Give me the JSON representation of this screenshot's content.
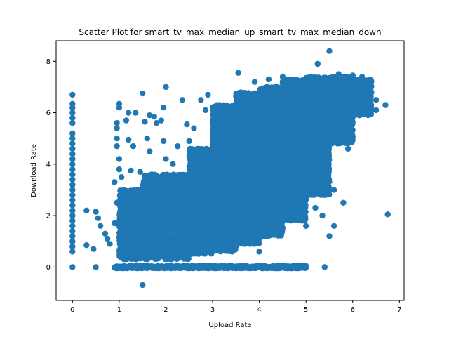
{
  "chart_data": {
    "type": "scatter",
    "title": "Scatter Plot for smart_tv_max_median_up_smart_tv_max_median_down",
    "xlabel": "Upload Rate",
    "ylabel": "Download Rate",
    "xlim": [
      -0.35,
      7.1
    ],
    "ylim": [
      -1.3,
      8.8
    ],
    "xticks": [
      0,
      1,
      2,
      3,
      4,
      5,
      6,
      7
    ],
    "yticks": [
      0,
      2,
      4,
      6,
      8
    ],
    "grid": false,
    "marker_color": "#1f77b4",
    "points": [
      [
        0,
        6.7
      ],
      [
        0,
        6.35
      ],
      [
        0,
        6.2
      ],
      [
        0,
        6.0
      ],
      [
        0,
        5.8
      ],
      [
        0,
        5.6
      ],
      [
        0,
        5.2
      ],
      [
        0,
        5.0
      ],
      [
        0,
        4.8
      ],
      [
        0,
        4.6
      ],
      [
        0,
        4.4
      ],
      [
        0,
        4.2
      ],
      [
        0,
        4.0
      ],
      [
        0,
        3.8
      ],
      [
        0,
        3.6
      ],
      [
        0,
        3.4
      ],
      [
        0,
        3.2
      ],
      [
        0,
        3.0
      ],
      [
        0,
        2.8
      ],
      [
        0,
        2.6
      ],
      [
        0,
        2.4
      ],
      [
        0,
        2.2
      ],
      [
        0,
        2.0
      ],
      [
        0,
        1.8
      ],
      [
        0,
        1.6
      ],
      [
        0,
        1.4
      ],
      [
        0,
        1.2
      ],
      [
        0,
        1.0
      ],
      [
        0,
        0.8
      ],
      [
        0,
        0.6
      ],
      [
        0,
        0.0
      ],
      [
        0.3,
        2.2
      ],
      [
        0.3,
        0.85
      ],
      [
        0.45,
        0.7
      ],
      [
        0.5,
        2.15
      ],
      [
        0.55,
        1.9
      ],
      [
        0.6,
        1.6
      ],
      [
        0.7,
        1.3
      ],
      [
        0.75,
        1.1
      ],
      [
        0.8,
        0.9
      ],
      [
        0.9,
        1.7
      ],
      [
        0.95,
        2.5
      ],
      [
        0.9,
        3.3
      ],
      [
        1.0,
        6.35
      ],
      [
        1.0,
        6.2
      ],
      [
        0.95,
        5.6
      ],
      [
        0.95,
        5.4
      ],
      [
        0.95,
        5.0
      ],
      [
        0.95,
        4.7
      ],
      [
        1.0,
        4.2
      ],
      [
        1.0,
        3.8
      ],
      [
        1.05,
        3.5
      ],
      [
        1.1,
        3.0
      ],
      [
        1.15,
        5.7
      ],
      [
        1.2,
        6.0
      ],
      [
        1.2,
        4.95
      ],
      [
        1.25,
        3.75
      ],
      [
        1.3,
        4.7
      ],
      [
        1.35,
        6.0
      ],
      [
        1.45,
        3.7
      ],
      [
        1.5,
        6.75
      ],
      [
        1.55,
        5.65
      ],
      [
        1.6,
        5.0
      ],
      [
        1.65,
        5.9
      ],
      [
        1.65,
        4.5
      ],
      [
        1.7,
        3.6
      ],
      [
        1.75,
        5.85
      ],
      [
        1.8,
        5.6
      ],
      [
        1.85,
        3.2
      ],
      [
        1.9,
        5.7
      ],
      [
        1.95,
        6.2
      ],
      [
        1.95,
        4.9
      ],
      [
        2.0,
        7.0
      ],
      [
        2.0,
        4.2
      ],
      [
        2.15,
        4.0
      ],
      [
        2.25,
        4.7
      ],
      [
        2.35,
        6.5
      ],
      [
        2.45,
        5.55
      ],
      [
        2.5,
        4.9
      ],
      [
        2.6,
        5.4
      ],
      [
        2.75,
        6.5
      ],
      [
        2.85,
        6.1
      ],
      [
        2.9,
        6.7
      ],
      [
        1.5,
        -0.7
      ],
      [
        0.5,
        0.0
      ],
      [
        1.0,
        0.0
      ],
      [
        1.5,
        0.0
      ],
      [
        2.0,
        0.0
      ],
      [
        2.5,
        0.0
      ],
      [
        3.0,
        0.0
      ],
      [
        3.5,
        0.0
      ],
      [
        4.0,
        0.0
      ],
      [
        4.5,
        0.0
      ],
      [
        5.0,
        0.0
      ],
      [
        5.4,
        0.0
      ],
      [
        1.2,
        0.6
      ],
      [
        1.5,
        0.55
      ],
      [
        2.0,
        0.5
      ],
      [
        2.5,
        0.55
      ],
      [
        3.0,
        0.6
      ],
      [
        3.5,
        0.8
      ],
      [
        3.8,
        0.9
      ],
      [
        4.0,
        0.6
      ],
      [
        3.55,
        7.55
      ],
      [
        3.9,
        7.2
      ],
      [
        4.2,
        7.3
      ],
      [
        4.5,
        7.4
      ],
      [
        4.8,
        7.2
      ],
      [
        5.0,
        7.35
      ],
      [
        5.25,
        7.9
      ],
      [
        5.5,
        8.4
      ],
      [
        5.7,
        7.5
      ],
      [
        6.0,
        7.45
      ],
      [
        6.2,
        7.4
      ],
      [
        6.4,
        6.8
      ],
      [
        6.5,
        6.5
      ],
      [
        6.7,
        6.3
      ],
      [
        6.75,
        2.05
      ],
      [
        5.8,
        2.5
      ],
      [
        5.9,
        4.6
      ],
      [
        5.6,
        3.0
      ],
      [
        5.5,
        1.2
      ],
      [
        5.6,
        1.6
      ],
      [
        5.35,
        2.0
      ],
      [
        5.2,
        2.3
      ],
      [
        5.0,
        1.6
      ],
      [
        4.8,
        2.5
      ],
      [
        4.5,
        1.9
      ],
      [
        4.3,
        1.5
      ],
      [
        4.1,
        1.2
      ],
      [
        3.7,
        0.9
      ],
      [
        3.5,
        1.0
      ],
      [
        3.2,
        0.9
      ],
      [
        5.4,
        4.2
      ],
      [
        5.55,
        4.8
      ],
      [
        5.6,
        5.5
      ],
      [
        5.75,
        5.9
      ],
      [
        5.85,
        5.3
      ],
      [
        5.95,
        6.1
      ],
      [
        4.7,
        4.9
      ],
      [
        4.5,
        3.9
      ],
      [
        4.2,
        4.3
      ],
      [
        4.9,
        5.8
      ],
      [
        6.1,
        6.4
      ],
      [
        6.3,
        6.2
      ],
      [
        6.5,
        6.1
      ],
      [
        6.3,
        7.1
      ],
      [
        6.0,
        6.9
      ]
    ],
    "dense_bands": [
      {
        "x": [
          1.0,
          1.5
        ],
        "y": [
          0.3,
          3.0
        ],
        "n": 550
      },
      {
        "x": [
          1.5,
          2.5
        ],
        "y": [
          0.3,
          3.6
        ],
        "n": 1400
      },
      {
        "x": [
          2.5,
          3.0
        ],
        "y": [
          0.5,
          4.6
        ],
        "n": 1100
      },
      {
        "x": [
          3.0,
          3.5
        ],
        "y": [
          0.6,
          6.3
        ],
        "n": 1600
      },
      {
        "x": [
          3.5,
          4.0
        ],
        "y": [
          0.9,
          6.8
        ],
        "n": 1800
      },
      {
        "x": [
          4.0,
          4.5
        ],
        "y": [
          1.2,
          7.0
        ],
        "n": 1900
      },
      {
        "x": [
          4.5,
          5.0
        ],
        "y": [
          1.8,
          7.3
        ],
        "n": 1800
      },
      {
        "x": [
          5.0,
          5.5
        ],
        "y": [
          2.8,
          7.4
        ],
        "n": 1300
      },
      {
        "x": [
          5.5,
          6.0
        ],
        "y": [
          4.8,
          7.4
        ],
        "n": 900
      },
      {
        "x": [
          6.0,
          6.4
        ],
        "y": [
          5.9,
          7.3
        ],
        "n": 450
      },
      {
        "x": [
          0.9,
          5.0
        ],
        "y": [
          -0.05,
          0.05
        ],
        "n": 600
      }
    ]
  }
}
